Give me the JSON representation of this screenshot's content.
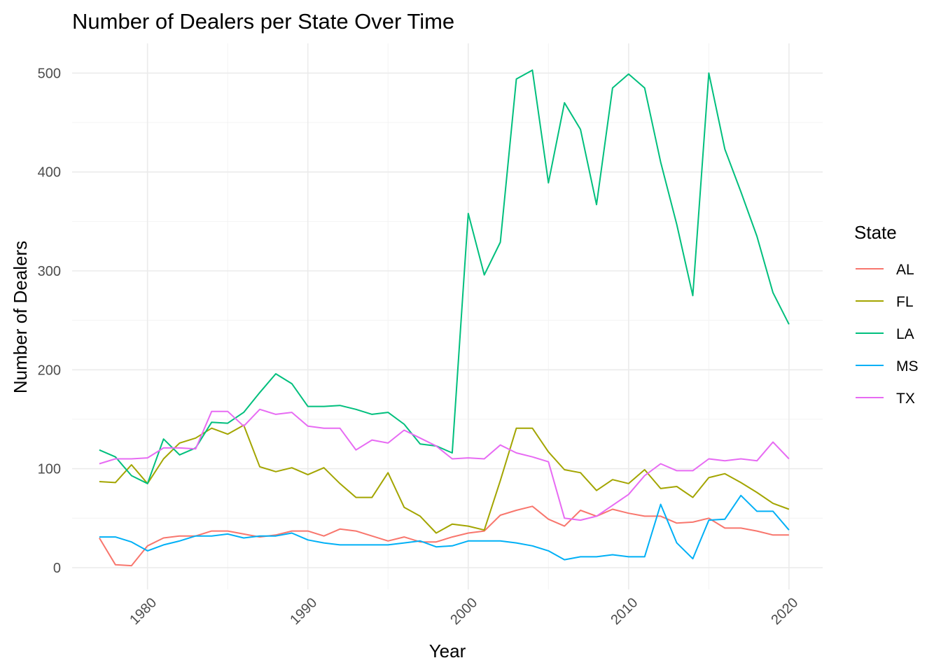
{
  "chart_data": {
    "type": "line",
    "title": "Number of Dealers per State Over Time",
    "xlabel": "Year",
    "ylabel": "Number of Dealers",
    "legend_title": "State",
    "legend_position": "right",
    "grid": true,
    "xlim": [
      1975.3,
      2022.1
    ],
    "ylim": [
      -22,
      530
    ],
    "x_ticks": [
      1980,
      1990,
      2000,
      2010,
      2020
    ],
    "x_tick_labels": [
      "1980",
      "1990",
      "2000",
      "2010",
      "2020"
    ],
    "y_ticks": [
      0,
      100,
      200,
      300,
      400,
      500
    ],
    "y_tick_labels": [
      "0",
      "100",
      "200",
      "300",
      "400",
      "500"
    ],
    "x": [
      1977,
      1978,
      1979,
      1980,
      1981,
      1982,
      1983,
      1984,
      1985,
      1986,
      1987,
      1988,
      1989,
      1990,
      1991,
      1992,
      1993,
      1994,
      1995,
      1996,
      1997,
      1998,
      1999,
      2000,
      2001,
      2002,
      2003,
      2004,
      2005,
      2006,
      2007,
      2008,
      2009,
      2010,
      2011,
      2012,
      2013,
      2014,
      2015,
      2016,
      2017,
      2018,
      2019,
      2020
    ],
    "series": [
      {
        "name": "AL",
        "color": "#F8766D",
        "values": [
          30,
          3,
          2,
          22,
          30,
          32,
          32,
          37,
          37,
          34,
          31,
          33,
          37,
          37,
          32,
          39,
          37,
          32,
          27,
          31,
          26,
          26,
          31,
          35,
          37,
          53,
          58,
          62,
          49,
          42,
          58,
          52,
          59,
          55,
          52,
          52,
          45,
          46,
          50,
          40,
          40,
          37,
          33,
          33
        ]
      },
      {
        "name": "FL",
        "color": "#A3A500",
        "values": [
          87,
          86,
          104,
          85,
          110,
          126,
          131,
          141,
          135,
          144,
          102,
          97,
          101,
          94,
          101,
          85,
          71,
          71,
          96,
          61,
          52,
          35,
          44,
          42,
          38,
          88,
          141,
          141,
          117,
          99,
          96,
          78,
          89,
          85,
          99,
          80,
          82,
          71,
          91,
          95,
          86,
          76,
          65,
          59
        ]
      },
      {
        "name": "LA",
        "color": "#00BF7D",
        "values": [
          119,
          112,
          93,
          85,
          130,
          114,
          121,
          147,
          146,
          157,
          177,
          196,
          186,
          163,
          163,
          164,
          160,
          155,
          157,
          145,
          125,
          123,
          116,
          358,
          296,
          329,
          494,
          503,
          389,
          470,
          443,
          367,
          485,
          499,
          485,
          410,
          347,
          275,
          500,
          423,
          380,
          335,
          278,
          246
        ]
      },
      {
        "name": "MS",
        "color": "#00B0F6",
        "values": [
          31,
          31,
          26,
          17,
          23,
          27,
          32,
          32,
          34,
          30,
          32,
          32,
          35,
          28,
          25,
          23,
          23,
          23,
          23,
          25,
          27,
          21,
          22,
          27,
          27,
          27,
          25,
          22,
          17,
          8,
          11,
          11,
          13,
          11,
          11,
          64,
          25,
          9,
          48,
          49,
          73,
          57,
          57,
          38
        ]
      },
      {
        "name": "TX",
        "color": "#E76BF3",
        "values": [
          105,
          110,
          110,
          111,
          121,
          121,
          120,
          158,
          158,
          143,
          160,
          155,
          157,
          143,
          141,
          141,
          119,
          129,
          126,
          139,
          131,
          123,
          110,
          111,
          110,
          124,
          116,
          112,
          107,
          50,
          48,
          52,
          63,
          74,
          93,
          105,
          98,
          98,
          110,
          108,
          110,
          108,
          127,
          110
        ]
      }
    ]
  }
}
